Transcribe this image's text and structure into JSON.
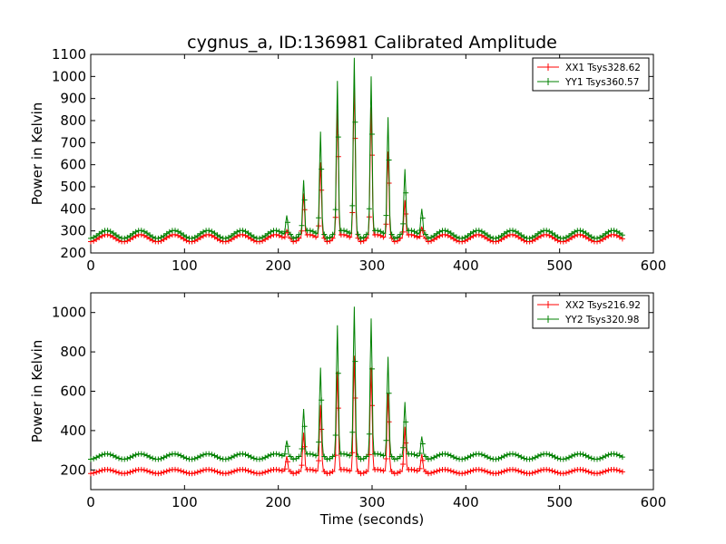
{
  "chart_data": [
    {
      "type": "line",
      "title": "cygnus_a, ID:136981 Calibrated Amplitude",
      "xlabel": "",
      "ylabel": "Power in Kelvin",
      "xlim": [
        0,
        600
      ],
      "ylim": [
        200,
        1100
      ],
      "xticks": [
        "0",
        "100",
        "200",
        "300",
        "400",
        "500",
        "600"
      ],
      "yticks": [
        "200",
        "300",
        "400",
        "500",
        "600",
        "700",
        "800",
        "900",
        "1000",
        "1100"
      ],
      "legend_position": "top-right",
      "grid": false,
      "series": [
        {
          "name": "XX1 Tsys328.62",
          "color": "#ff0000",
          "baseline": 267,
          "ripple": 16,
          "peaks": [
            [
              209,
              305
            ],
            [
              227,
              470
            ],
            [
              245,
              610
            ],
            [
              263,
              850
            ],
            [
              281,
              980
            ],
            [
              299,
              860
            ],
            [
              317,
              660
            ],
            [
              335,
              440
            ],
            [
              353,
              320
            ]
          ]
        },
        {
          "name": "YY1 Tsys360.57",
          "color": "#008000",
          "baseline": 284,
          "ripple": 18,
          "peaks": [
            [
              209,
              370
            ],
            [
              227,
              530
            ],
            [
              245,
              750
            ],
            [
              263,
              980
            ],
            [
              281,
              1085
            ],
            [
              299,
              1000
            ],
            [
              317,
              815
            ],
            [
              335,
              580
            ],
            [
              353,
              400
            ]
          ]
        }
      ]
    },
    {
      "type": "line",
      "title": "",
      "xlabel": "Time (seconds)",
      "ylabel": "Power in Kelvin",
      "xlim": [
        0,
        600
      ],
      "ylim": [
        100,
        1100
      ],
      "xticks": [
        "0",
        "100",
        "200",
        "300",
        "400",
        "500",
        "600"
      ],
      "yticks": [
        "200",
        "400",
        "600",
        "800",
        "1000"
      ],
      "legend_position": "top-right",
      "grid": false,
      "series": [
        {
          "name": "XX2 Tsys216.92",
          "color": "#ff0000",
          "baseline": 192,
          "ripple": 10,
          "peaks": [
            [
              209,
              270
            ],
            [
              227,
              390
            ],
            [
              245,
              530
            ],
            [
              263,
              700
            ],
            [
              281,
              780
            ],
            [
              299,
              720
            ],
            [
              317,
              590
            ],
            [
              335,
              420
            ],
            [
              353,
              280
            ]
          ]
        },
        {
          "name": "YY2 Tsys320.98",
          "color": "#008000",
          "baseline": 268,
          "ripple": 14,
          "peaks": [
            [
              209,
              350
            ],
            [
              227,
              510
            ],
            [
              245,
              720
            ],
            [
              263,
              935
            ],
            [
              281,
              1030
            ],
            [
              299,
              970
            ],
            [
              317,
              775
            ],
            [
              335,
              545
            ],
            [
              353,
              370
            ]
          ]
        }
      ]
    }
  ]
}
